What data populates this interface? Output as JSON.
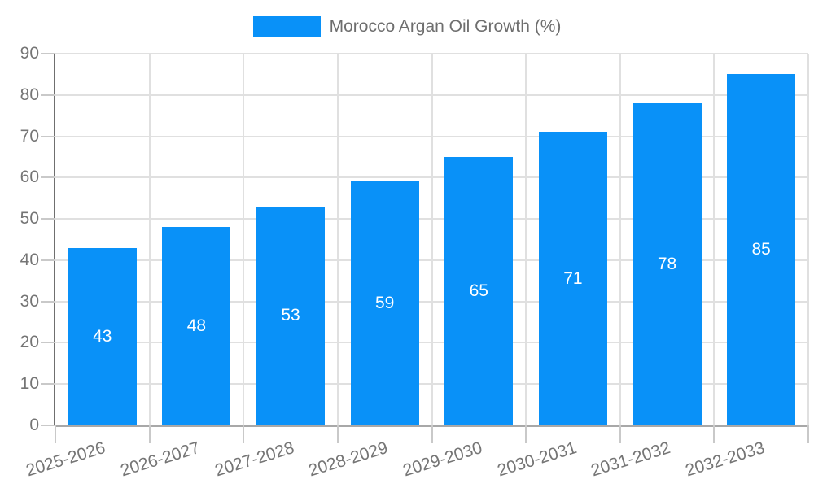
{
  "chart_data": {
    "type": "bar",
    "title": "",
    "legend": [
      {
        "label": "Morocco Argan Oil Growth (%)",
        "color": "#0991F8"
      }
    ],
    "legend_position": "top-center",
    "categories": [
      "2025-2026",
      "2026-2027",
      "2027-2028",
      "2028-2029",
      "2029-2030",
      "2030-2031",
      "2031-2032",
      "2032-2033"
    ],
    "values": [
      43,
      48,
      53,
      59,
      65,
      71,
      78,
      85
    ],
    "value_labels_shown": true,
    "xlabel": "",
    "ylabel": "",
    "ylim": [
      0,
      90
    ],
    "y_ticks": [
      0,
      10,
      20,
      30,
      40,
      50,
      60,
      70,
      80,
      90
    ],
    "grid": "horizontal-and-vertical",
    "colors": {
      "bar": "#0991F8",
      "value_label": "#FFFFFF",
      "axis_text": "#757575",
      "legend_text": "#6E6E6E",
      "gridline": "#E0E0E0",
      "y_axis_line": "#6F6F6F",
      "x_axis_line": "#A8A8A8",
      "tick": "#C9C9C9"
    }
  }
}
